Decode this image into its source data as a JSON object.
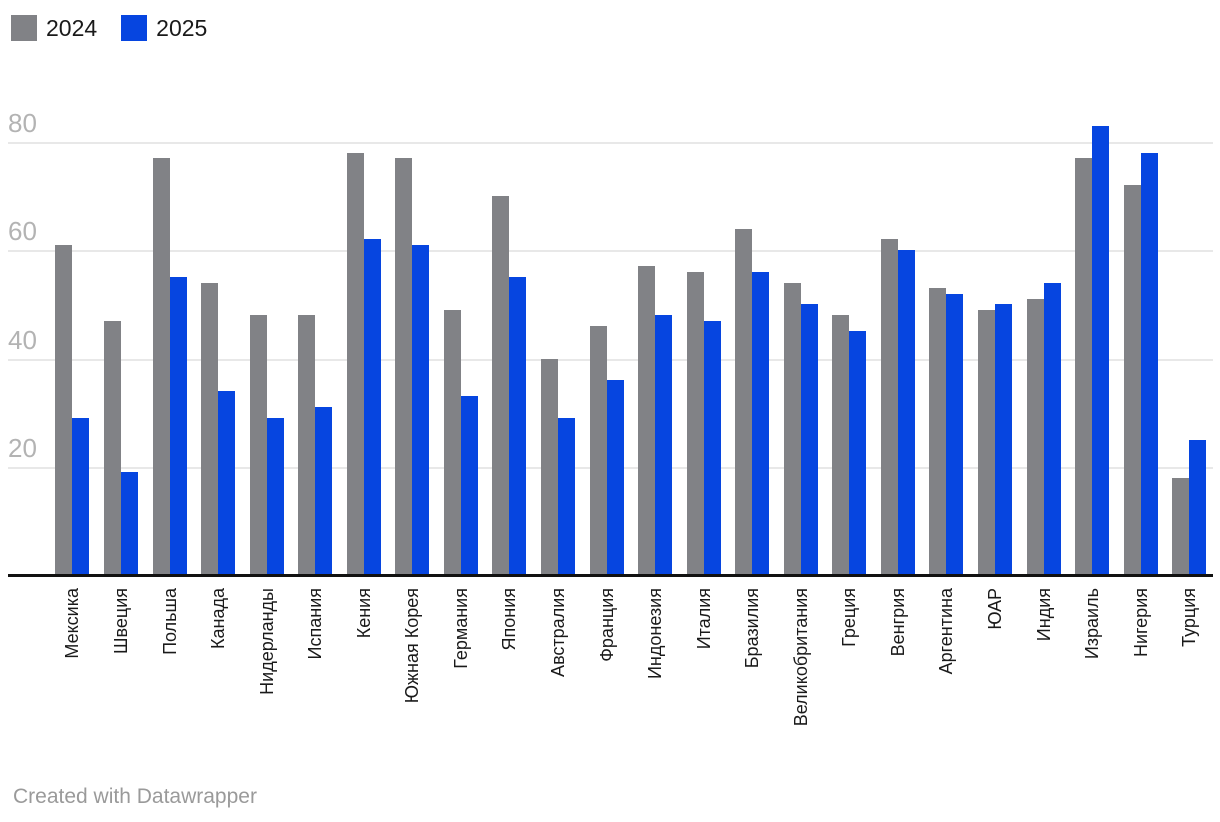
{
  "footer": {
    "credit": "Created with Datawrapper"
  },
  "axis": {
    "yticks": [
      20,
      40,
      60,
      80
    ]
  },
  "chart_data": {
    "type": "bar",
    "title": "",
    "xlabel": "",
    "ylabel": "",
    "categories": [
      "Мексика",
      "Швеция",
      "Польша",
      "Канада",
      "Нидерланды",
      "Испания",
      "Кения",
      "Южная Корея",
      "Германия",
      "Япония",
      "Австралия",
      "Франция",
      "Индонезия",
      "Италия",
      "Бразилия",
      "Великобритания",
      "Греция",
      "Венгрия",
      "Аргентина",
      "ЮАР",
      "Индия",
      "Израиль",
      "Нигерия",
      "Турция"
    ],
    "series": [
      {
        "name": "2024",
        "color": "#818286",
        "values": [
          61,
          47,
          77,
          54,
          48,
          48,
          78,
          77,
          49,
          70,
          40,
          46,
          57,
          56,
          64,
          54,
          48,
          62,
          53,
          49,
          51,
          77,
          72,
          18
        ]
      },
      {
        "name": "2025",
        "color": "#0645e0",
        "values": [
          29,
          19,
          55,
          34,
          29,
          31,
          62,
          61,
          33,
          55,
          29,
          36,
          48,
          47,
          56,
          50,
          45,
          60,
          52,
          50,
          54,
          83,
          78,
          25
        ]
      }
    ],
    "yticks": [
      20,
      40,
      60,
      80
    ],
    "ylim": [
      0,
      88
    ],
    "grid": "horizontal",
    "gridline_color": "#e8e8e8",
    "axis_label_color": "#b3b3b3",
    "baseline_color": "#111111",
    "legend_position": "top-left",
    "x_labels_rotated": -90
  }
}
